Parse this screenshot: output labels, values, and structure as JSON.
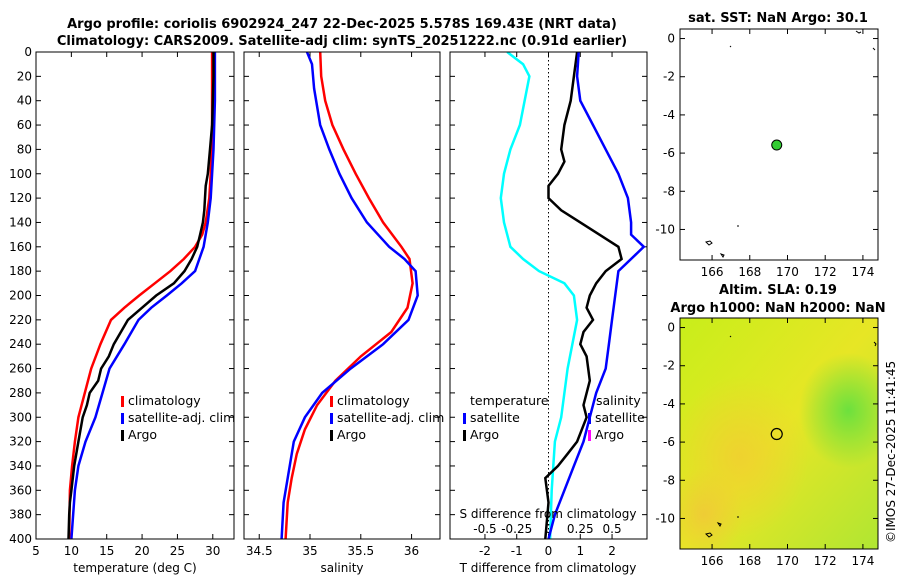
{
  "title_line1": "Argo profile: coriolis 6902924_247 22-Dec-2025 5.578S 169.43E (NRT data)",
  "title_line2": "Climatology: CARS2009. Satellite-adj clim: synTS_20251222.nc (0.91d earlier)",
  "watermark": "©IMOS 27-Dec-2025 11:41:45",
  "colors": {
    "clim": "#ff0000",
    "sat": "#0000ff",
    "argo": "#000000",
    "temp_diff": "#00ffff",
    "sal_argo": "#ff00ff",
    "map_dot": "#33cc33"
  },
  "chart_data": [
    {
      "type": "line",
      "id": "temperature",
      "xlabel": "temperature (deg C)",
      "ylabel": "",
      "xlim": [
        5,
        33
      ],
      "ylim": [
        0,
        400
      ],
      "y_reversed": true,
      "xticks": [
        5,
        10,
        15,
        20,
        25,
        30
      ],
      "yticks": [
        0,
        20,
        40,
        60,
        80,
        100,
        120,
        140,
        160,
        180,
        200,
        220,
        240,
        260,
        280,
        300,
        320,
        340,
        360,
        380,
        400
      ],
      "legend": [
        "climatology",
        "satellite-adj. clim",
        "Argo"
      ],
      "series": [
        {
          "name": "climatology",
          "color": "clim",
          "x": [
            29.9,
            29.9,
            29.9,
            29.9,
            29.8,
            29.7,
            29.5,
            29.0,
            28.5,
            27.5,
            25.9,
            24.0,
            21.8,
            19.6,
            17.5,
            15.6,
            14.1,
            12.8,
            11.9,
            11.0,
            10.5,
            10.1,
            9.8,
            9.7
          ],
          "y": [
            0,
            20,
            40,
            60,
            80,
            100,
            120,
            140,
            150,
            160,
            170,
            180,
            190,
            200,
            210,
            220,
            240,
            260,
            280,
            300,
            320,
            340,
            360,
            400
          ]
        },
        {
          "name": "satellite-adj. clim",
          "color": "sat",
          "x": [
            30.3,
            30.3,
            30.3,
            30.2,
            30.1,
            29.9,
            29.7,
            29.3,
            28.7,
            27.5,
            25.6,
            23.5,
            21.3,
            19.5,
            17.5,
            15.4,
            14.4,
            13.4,
            12.0,
            11.0,
            10.5,
            10.0
          ],
          "y": [
            0,
            20,
            40,
            60,
            80,
            100,
            120,
            140,
            160,
            180,
            190,
            200,
            210,
            220,
            240,
            260,
            280,
            300,
            320,
            340,
            360,
            400
          ]
        },
        {
          "name": "Argo",
          "color": "argo",
          "x": [
            30.1,
            30.1,
            30.0,
            29.9,
            29.6,
            29.3,
            29.0,
            28.9,
            28.8,
            28.6,
            28.2,
            27.8,
            27.0,
            26.0,
            24.5,
            22.0,
            20.0,
            18.0,
            16.0,
            15.3,
            14.2,
            13.8,
            12.6,
            12.2,
            11.6,
            11.0,
            10.4,
            10.2,
            10.0,
            9.8,
            9.7,
            9.6
          ],
          "y": [
            0,
            20,
            40,
            60,
            80,
            100,
            110,
            120,
            130,
            140,
            150,
            160,
            170,
            180,
            190,
            200,
            210,
            220,
            240,
            250,
            260,
            270,
            280,
            290,
            300,
            320,
            340,
            350,
            360,
            370,
            380,
            400
          ]
        }
      ]
    },
    {
      "type": "line",
      "id": "salinity",
      "xlabel": "salinity",
      "xlim": [
        34.35,
        36.28
      ],
      "ylim": [
        0,
        400
      ],
      "y_reversed": true,
      "xticks": [
        34.5,
        35,
        35.5,
        36
      ],
      "legend": [
        "climatology",
        "satellite-adj. clim",
        "Argo"
      ],
      "series": [
        {
          "name": "climatology",
          "color": "clim",
          "x": [
            35.1,
            35.11,
            35.15,
            35.22,
            35.33,
            35.45,
            35.58,
            35.72,
            35.9,
            35.98,
            36.01,
            35.96,
            35.8,
            35.5,
            35.25,
            35.07,
            34.95,
            34.87,
            34.82,
            34.78,
            34.76
          ],
          "y": [
            0,
            20,
            40,
            60,
            80,
            100,
            120,
            140,
            160,
            170,
            190,
            210,
            230,
            250,
            270,
            290,
            310,
            330,
            350,
            370,
            400
          ]
        },
        {
          "name": "satellite-adj. clim",
          "color": "sat",
          "x": [
            34.97,
            35.02,
            35.04,
            35.1,
            35.19,
            35.29,
            35.41,
            35.56,
            35.78,
            35.93,
            36.04,
            36.06,
            35.97,
            35.72,
            35.4,
            35.12,
            34.95,
            34.84,
            34.78,
            34.74,
            34.72
          ],
          "y": [
            0,
            10,
            30,
            60,
            80,
            100,
            120,
            140,
            160,
            170,
            180,
            200,
            220,
            240,
            260,
            280,
            300,
            320,
            350,
            370,
            400
          ]
        },
        {
          "name": "Argo",
          "color": "argo",
          "x": [],
          "y": []
        }
      ]
    },
    {
      "type": "line",
      "id": "difference",
      "xlabel": "T difference from climatology",
      "xlabel_top": "S difference from climatology",
      "xlim": [
        -3.1,
        3.1
      ],
      "ylim": [
        0,
        400
      ],
      "y_reversed": true,
      "xticks": [
        -2,
        -1,
        0,
        1,
        2
      ],
      "xticks_top": [
        -0.5,
        -0.25,
        0,
        0.25,
        0.5
      ],
      "legend_temp_heading": "temperature",
      "legend_sal_heading": "salinity",
      "legend_temp": [
        "satellite",
        "Argo"
      ],
      "legend_sal": [
        "satellite",
        "Argo"
      ],
      "series": [
        {
          "name": "T satellite",
          "color": "temp_diff",
          "x": [
            -1.3,
            -0.8,
            -0.6,
            -0.9,
            -1.2,
            -1.4,
            -1.5,
            -1.4,
            -1.3,
            -1.2,
            -0.8,
            -0.3,
            0.5,
            0.8,
            0.9,
            0.6,
            0.4,
            0.2,
            0.15,
            0.1,
            0.05
          ],
          "y": [
            0,
            10,
            20,
            60,
            80,
            100,
            120,
            140,
            150,
            160,
            170,
            180,
            190,
            200,
            220,
            260,
            300,
            320,
            340,
            360,
            400
          ]
        },
        {
          "name": "T Argo",
          "color": "argo",
          "x": [
            0.9,
            0.8,
            0.7,
            0.5,
            0.4,
            0.5,
            0.3,
            0.0,
            0.0,
            0.4,
            1.0,
            1.6,
            2.2,
            2.3,
            1.8,
            1.5,
            1.3,
            1.2,
            1.4,
            1.1,
            1.0,
            1.2,
            1.3,
            1.1,
            1.2,
            0.9,
            0.6,
            0.3,
            -0.1,
            0.0,
            -0.1
          ],
          "y": [
            0,
            20,
            40,
            60,
            80,
            90,
            100,
            110,
            120,
            130,
            140,
            150,
            160,
            170,
            180,
            190,
            200,
            210,
            220,
            230,
            240,
            250,
            270,
            290,
            300,
            320,
            330,
            340,
            350,
            370,
            400
          ]
        },
        {
          "name": "T satellite-adj",
          "color": "sat",
          "x": [
            0.95,
            0.9,
            1.0,
            1.4,
            1.8,
            2.2,
            2.5,
            2.6,
            2.6,
            3.0,
            2.2,
            2.1,
            2.0,
            1.9,
            1.8,
            1.5,
            1.3,
            1.1,
            0.8,
            0.5,
            0.2,
            0.0
          ],
          "y": [
            0,
            20,
            40,
            60,
            80,
            100,
            120,
            140,
            150,
            160,
            180,
            200,
            220,
            240,
            260,
            280,
            300,
            320,
            340,
            360,
            380,
            400
          ]
        }
      ]
    },
    {
      "type": "map",
      "id": "sat_sst",
      "title": "sat. SST: NaN Argo: 30.1",
      "xlim": [
        164.3,
        174.8
      ],
      "ylim": [
        -11.6,
        0.5
      ],
      "xticks": [
        166,
        168,
        170,
        172,
        174
      ],
      "yticks": [
        0,
        -2,
        -4,
        -6,
        -8,
        -10
      ],
      "point": {
        "lon": 169.43,
        "lat": -5.578
      }
    },
    {
      "type": "heatmap",
      "id": "altimetry",
      "title_line1": "Altim. SLA: 0.19",
      "title_line2": "Argo h1000: NaN h2000: NaN",
      "xlim": [
        164.3,
        174.8
      ],
      "ylim": [
        -11.6,
        0.5
      ],
      "xticks": [
        166,
        168,
        170,
        172,
        174
      ],
      "yticks": [
        0,
        -2,
        -4,
        -6,
        -8,
        -10
      ],
      "point": {
        "lon": 169.43,
        "lat": -5.578
      }
    }
  ]
}
